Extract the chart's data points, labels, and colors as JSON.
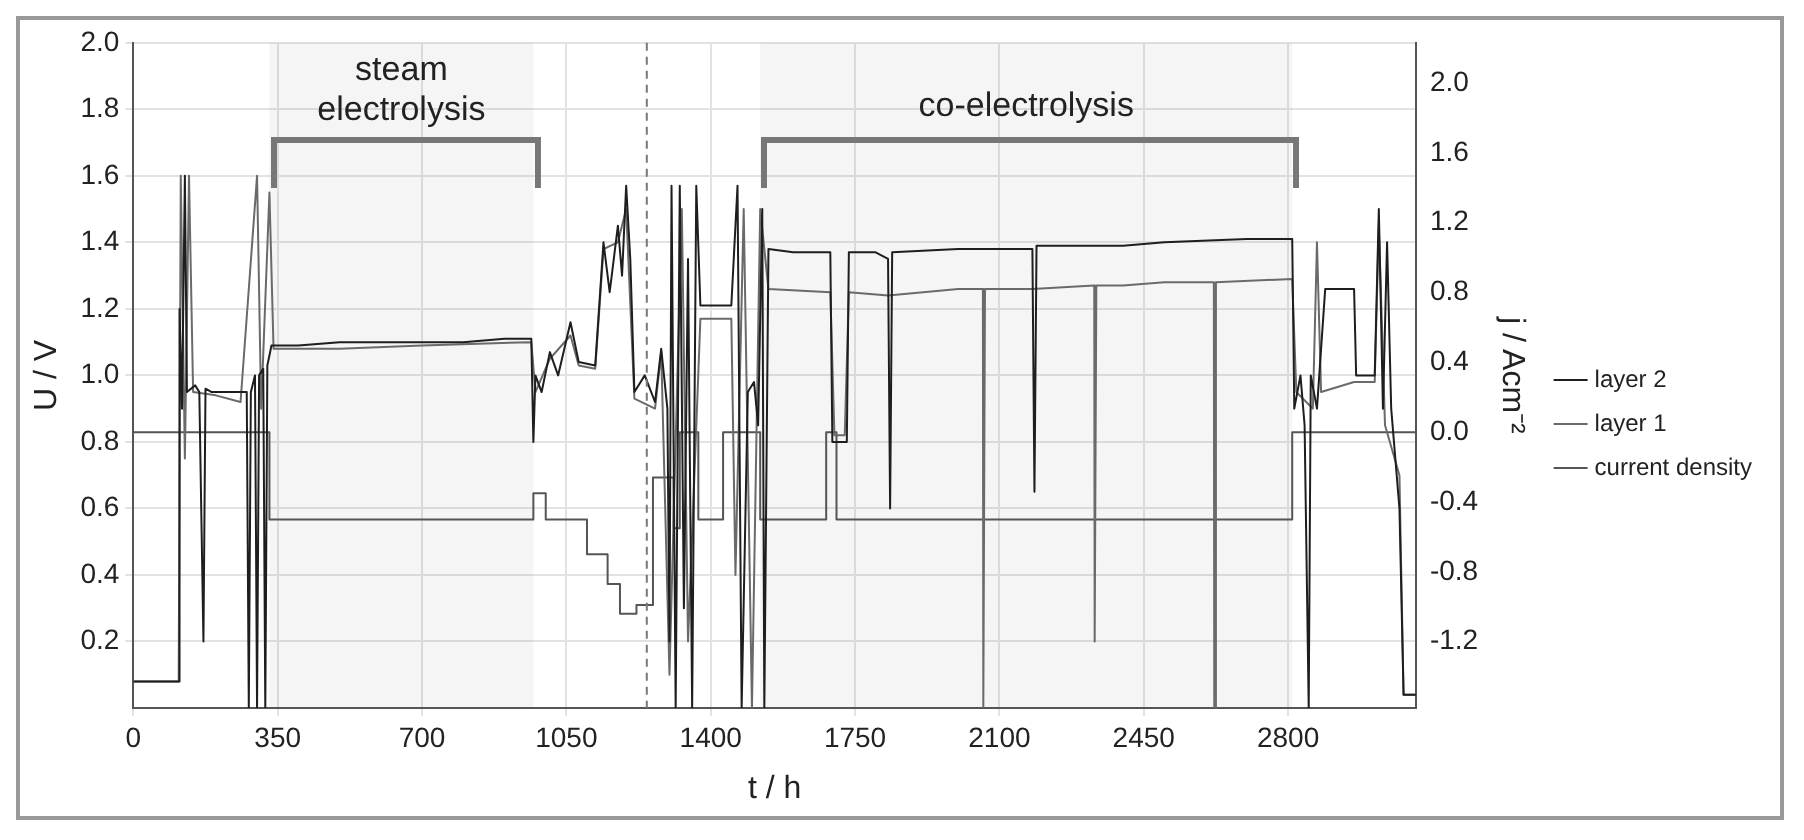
{
  "chart_data": {
    "type": "line",
    "xlabel": "t / h",
    "ylabel": "U / V",
    "y2label": "j / Acm⁻²",
    "xlim": [
      0,
      3110
    ],
    "xticks": [
      0,
      350,
      700,
      1050,
      1400,
      1750,
      2100,
      2450,
      2800
    ],
    "ylim": [
      0,
      2.0
    ],
    "yticks": [
      0.2,
      0.4,
      0.6,
      0.8,
      {
        "value": 1,
        "label": "1.0"
      },
      1.2,
      1.4,
      1.6,
      1.8,
      {
        "value": 2,
        "label": "2.0"
      }
    ],
    "y2lim": [
      -1.58,
      2.23
    ],
    "y2ticks": [
      -1.2,
      -0.8,
      -0.4,
      {
        "value": 0,
        "label": "0.0"
      },
      0.4,
      0.8,
      1.2,
      1.6,
      {
        "value": 2,
        "label": "2.0"
      }
    ],
    "grid": true,
    "legend": "right",
    "marker": "none",
    "line_style": "solid",
    "ref_lines": [
      {
        "axis": "x",
        "value": 1245,
        "color": "#777777",
        "line_style": "dashed"
      }
    ],
    "bands": [
      {
        "axis": "x",
        "from": 330,
        "to": 970,
        "label": "steam electrolysis",
        "color": "#777777"
      },
      {
        "axis": "x",
        "from": 1520,
        "to": 2810,
        "label": "co-electrolysis",
        "color": "#777777"
      }
    ],
    "series": [
      {
        "name": "layer 2",
        "color": "#1e1e1e",
        "x": [
          0,
          110,
          112,
          118,
          125,
          130,
          150,
          160,
          170,
          175,
          190,
          250,
          275,
          280,
          285,
          295,
          300,
          305,
          315,
          320,
          325,
          335,
          400,
          500,
          600,
          700,
          800,
          900,
          965,
          970,
          975,
          990,
          1010,
          1030,
          1060,
          1080,
          1120,
          1140,
          1155,
          1175,
          1185,
          1195,
          1205,
          1215,
          1240,
          1265,
          1280,
          1295,
          1300,
          1305,
          1315,
          1325,
          1335,
          1345,
          1355,
          1365,
          1375,
          1450,
          1465,
          1475,
          1490,
          1505,
          1515,
          1525,
          1530,
          1540,
          1600,
          1690,
          1695,
          1730,
          1735,
          1800,
          1830,
          1835,
          1840,
          2000,
          2180,
          2185,
          2190,
          2400,
          2500,
          2700,
          2810,
          2815,
          2830,
          2840,
          2850,
          2855,
          2870,
          2890,
          2960,
          2965,
          3010,
          3020,
          3030,
          3040,
          3050,
          3070,
          3080,
          3110
        ],
        "values": [
          0.08,
          0.08,
          1.2,
          0.9,
          1.6,
          0.95,
          0.97,
          0.95,
          0.2,
          0.96,
          0.95,
          0.95,
          0.95,
          0,
          0.95,
          1.0,
          0,
          1.0,
          1.02,
          0,
          1.03,
          1.09,
          1.09,
          1.1,
          1.1,
          1.1,
          1.1,
          1.11,
          1.11,
          0.8,
          1.0,
          0.95,
          1.07,
          1.0,
          1.16,
          1.04,
          1.03,
          1.4,
          1.25,
          1.45,
          1.3,
          1.57,
          1.35,
          0.95,
          1.0,
          0.92,
          1.08,
          0.9,
          0.2,
          1.57,
          0,
          1.57,
          0.3,
          1.35,
          0,
          1.57,
          1.21,
          1.21,
          1.57,
          0,
          0.95,
          0.98,
          0.85,
          1.5,
          0,
          1.38,
          1.37,
          1.37,
          0.8,
          0.8,
          1.37,
          1.37,
          1.35,
          0.6,
          1.37,
          1.38,
          1.38,
          0.65,
          1.39,
          1.39,
          1.4,
          1.41,
          1.41,
          0.9,
          1.0,
          0.85,
          0,
          1.0,
          0.9,
          1.26,
          1.26,
          1.0,
          1.0,
          1.5,
          0.9,
          1.4,
          0.9,
          0.6,
          0.04,
          0.04
        ]
      },
      {
        "name": "layer 1",
        "color": "#6a6a6a",
        "x": [
          0,
          110,
          115,
          125,
          135,
          145,
          200,
          260,
          300,
          310,
          330,
          340,
          500,
          700,
          965,
          975,
          1010,
          1060,
          1080,
          1120,
          1140,
          1175,
          1195,
          1215,
          1265,
          1280,
          1300,
          1330,
          1345,
          1375,
          1450,
          1460,
          1480,
          1500,
          1520,
          1540,
          1690,
          1700,
          1725,
          1735,
          1830,
          2000,
          2060,
          2061,
          2065,
          2180,
          2330,
          2331,
          2335,
          2400,
          2500,
          2620,
          2621,
          2625,
          2810,
          2820,
          2860,
          2870,
          2880,
          2960,
          3010,
          3020,
          3035,
          3070,
          3080,
          3110
        ],
        "values": [
          0.08,
          0.08,
          1.6,
          0.75,
          1.6,
          0.95,
          0.94,
          0.92,
          1.6,
          0.9,
          1.55,
          1.08,
          1.08,
          1.09,
          1.1,
          0.95,
          1.05,
          1.12,
          1.03,
          1.02,
          1.38,
          1.4,
          1.5,
          0.93,
          0.9,
          1.07,
          0.1,
          1.5,
          0.2,
          1.17,
          1.17,
          0.4,
          1.5,
          0,
          1.5,
          1.26,
          1.25,
          0.82,
          0.82,
          1.25,
          1.24,
          1.26,
          1.26,
          0,
          1.26,
          1.26,
          1.27,
          0.2,
          1.27,
          1.27,
          1.28,
          1.28,
          0,
          1.28,
          1.29,
          0.95,
          0.9,
          1.4,
          0.95,
          0.98,
          0.98,
          1.45,
          0.85,
          0.7,
          0.04,
          0.04
        ]
      },
      {
        "name": "current density",
        "color": "#555555",
        "axis": "y2",
        "x": [
          0,
          330,
          330,
          970,
          970,
          1000,
          1000,
          1100,
          1100,
          1150,
          1150,
          1180,
          1180,
          1220,
          1220,
          1260,
          1260,
          1310,
          1310,
          1325,
          1325,
          1370,
          1370,
          1430,
          1430,
          1520,
          1520,
          1680,
          1680,
          1705,
          1705,
          2810,
          2810,
          3110
        ],
        "values": [
          0,
          0,
          -0.5,
          -0.5,
          -0.35,
          -0.35,
          -0.5,
          -0.5,
          -0.7,
          -0.7,
          -0.87,
          -0.87,
          -1.04,
          -1.04,
          -0.99,
          -0.99,
          -0.26,
          -0.26,
          -0.55,
          -0.55,
          0,
          0,
          -0.5,
          -0.5,
          0,
          0,
          -0.5,
          -0.5,
          0,
          0,
          -0.5,
          -0.5,
          0,
          0
        ]
      }
    ]
  }
}
